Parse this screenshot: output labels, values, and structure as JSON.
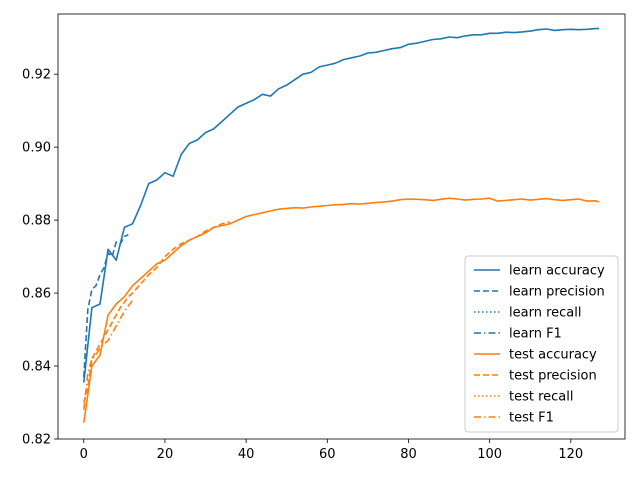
{
  "chart_data": {
    "type": "line",
    "title": "",
    "xlabel": "",
    "ylabel": "",
    "xlim": [
      -6.35,
      133.35
    ],
    "ylim": [
      0.82,
      0.9365
    ],
    "xticks": [
      0,
      20,
      40,
      60,
      80,
      100,
      120
    ],
    "yticks": [
      0.82,
      0.84,
      0.86,
      0.88,
      0.9,
      0.92
    ],
    "xtick_labels": [
      "0",
      "20",
      "40",
      "60",
      "80",
      "100",
      "120"
    ],
    "ytick_labels": [
      "0.82",
      "0.84",
      "0.86",
      "0.88",
      "0.90",
      "0.92"
    ],
    "legend_position": "lower-right",
    "grid": false,
    "series": [
      {
        "name": "learn accuracy",
        "color": "#1f77b4",
        "style": "solid",
        "x": [
          0,
          2,
          4,
          6,
          8,
          10,
          12,
          14,
          16,
          18,
          20,
          22,
          24,
          26,
          28,
          30,
          32,
          34,
          36,
          38,
          40,
          42,
          44,
          46,
          48,
          50,
          52,
          54,
          56,
          58,
          60,
          62,
          64,
          66,
          68,
          70,
          72,
          74,
          76,
          78,
          80,
          82,
          84,
          86,
          88,
          90,
          92,
          94,
          96,
          98,
          100,
          102,
          104,
          106,
          108,
          110,
          112,
          114,
          116,
          118,
          120,
          122,
          124,
          126,
          127
        ],
        "y": [
          0.8355,
          0.856,
          0.857,
          0.872,
          0.869,
          0.878,
          0.879,
          0.884,
          0.89,
          0.891,
          0.893,
          0.892,
          0.898,
          0.901,
          0.902,
          0.904,
          0.905,
          0.907,
          0.909,
          0.911,
          0.912,
          0.913,
          0.9145,
          0.914,
          0.916,
          0.917,
          0.9185,
          0.92,
          0.9205,
          0.922,
          0.9225,
          0.923,
          0.924,
          0.9245,
          0.925,
          0.9258,
          0.926,
          0.9265,
          0.927,
          0.9273,
          0.9282,
          0.9285,
          0.929,
          0.9295,
          0.9297,
          0.9302,
          0.93,
          0.9305,
          0.9308,
          0.9308,
          0.9312,
          0.9312,
          0.9315,
          0.9314,
          0.9316,
          0.9318,
          0.9322,
          0.9324,
          0.932,
          0.9322,
          0.9323,
          0.9322,
          0.9323,
          0.9325,
          0.9325
        ]
      },
      {
        "name": "learn precision",
        "color": "#1f77b4",
        "style": "dashed",
        "x": [
          0,
          1,
          2,
          3,
          4,
          5,
          6,
          7,
          8,
          9,
          10,
          11
        ],
        "y": [
          0.837,
          0.8555,
          0.861,
          0.862,
          0.865,
          0.867,
          0.871,
          0.87,
          0.874,
          0.8735,
          0.8755,
          0.876
        ]
      },
      {
        "name": "learn recall",
        "color": "#1f77b4",
        "style": "dotted",
        "x": [],
        "y": []
      },
      {
        "name": "learn F1",
        "color": "#1f77b4",
        "style": "dashdot",
        "x": [],
        "y": []
      },
      {
        "name": "test accuracy",
        "color": "#ff7f0e",
        "style": "solid",
        "x": [
          0,
          2,
          4,
          6,
          8,
          10,
          12,
          14,
          16,
          18,
          20,
          22,
          24,
          26,
          28,
          30,
          32,
          34,
          36,
          38,
          40,
          42,
          44,
          46,
          48,
          50,
          52,
          54,
          56,
          58,
          60,
          62,
          64,
          66,
          68,
          70,
          72,
          74,
          76,
          78,
          80,
          82,
          84,
          86,
          88,
          90,
          92,
          94,
          96,
          98,
          100,
          102,
          104,
          106,
          108,
          110,
          112,
          114,
          116,
          118,
          120,
          122,
          124,
          126,
          127
        ],
        "y": [
          0.8245,
          0.84,
          0.843,
          0.854,
          0.857,
          0.859,
          0.862,
          0.864,
          0.866,
          0.868,
          0.869,
          0.871,
          0.873,
          0.8745,
          0.8755,
          0.8765,
          0.878,
          0.8785,
          0.879,
          0.88,
          0.881,
          0.8815,
          0.882,
          0.8825,
          0.883,
          0.8832,
          0.8834,
          0.8833,
          0.8836,
          0.8838,
          0.884,
          0.8842,
          0.8843,
          0.8845,
          0.8844,
          0.8846,
          0.8848,
          0.885,
          0.8852,
          0.8856,
          0.8858,
          0.8857,
          0.8856,
          0.8854,
          0.8857,
          0.886,
          0.8858,
          0.8855,
          0.8857,
          0.8858,
          0.886,
          0.8852,
          0.8854,
          0.8856,
          0.8858,
          0.8855,
          0.8857,
          0.8859,
          0.8856,
          0.8854,
          0.8856,
          0.8858,
          0.8852,
          0.8853,
          0.885
        ]
      },
      {
        "name": "test precision",
        "color": "#ff7f0e",
        "style": "dashed",
        "x": [
          0,
          1,
          2,
          3,
          4,
          5,
          6,
          7,
          8,
          9,
          10,
          11,
          12,
          14,
          16,
          18,
          20,
          22,
          24,
          26,
          28,
          30,
          32,
          34,
          36
        ],
        "y": [
          0.83,
          0.834,
          0.842,
          0.844,
          0.846,
          0.848,
          0.85,
          0.852,
          0.854,
          0.856,
          0.8575,
          0.859,
          0.86,
          0.8625,
          0.865,
          0.867,
          0.87,
          0.872,
          0.8735,
          0.8745,
          0.8755,
          0.877,
          0.878,
          0.879,
          0.8795
        ]
      },
      {
        "name": "test recall",
        "color": "#ff7f0e",
        "style": "dotted",
        "x": [],
        "y": []
      },
      {
        "name": "test F1",
        "color": "#ff7f0e",
        "style": "dashdot",
        "x": [
          0,
          1,
          2,
          3,
          4,
          5,
          6,
          7,
          8,
          9,
          10,
          11,
          12
        ],
        "y": [
          0.828,
          0.838,
          0.842,
          0.843,
          0.845,
          0.846,
          0.847,
          0.849,
          0.851,
          0.853,
          0.855,
          0.8565,
          0.858
        ]
      }
    ]
  }
}
